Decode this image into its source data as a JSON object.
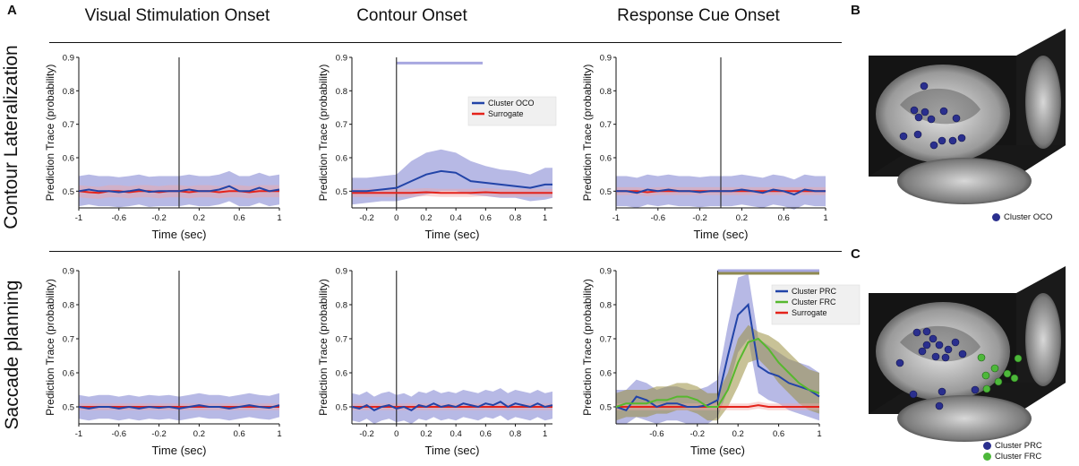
{
  "panel_labels": {
    "a": "A",
    "b": "B",
    "c": "C"
  },
  "column_titles": [
    "Visual Stimulation Onset",
    "Contour Onset",
    "Response Cue Onset"
  ],
  "row_labels": [
    "Contour Lateralization",
    "Saccade planning"
  ],
  "colors": {
    "blue": "#2244a8",
    "blue_band": "#7b7fd0",
    "red": "#e4231b",
    "red_band": "#f2a7a3",
    "green": "#56b82e",
    "green_band": "#9a8f42",
    "cluster_oco": "#2a2f8e",
    "cluster_frc": "#4db83a"
  },
  "brain_b": {
    "legend": [
      {
        "label": "Cluster OCO",
        "color": "#2a2f8e"
      }
    ]
  },
  "brain_c": {
    "legend": [
      {
        "label": "Cluster PRC",
        "color": "#2a2f8e"
      },
      {
        "label": "Cluster FRC",
        "color": "#4db83a"
      }
    ]
  },
  "chart_data": [
    {
      "type": "line",
      "id": "r1c1",
      "title": "Visual Stimulation Onset",
      "xlabel": "Time (sec)",
      "ylabel": "Prediction Trace (probability)",
      "xlim": [
        -1,
        1
      ],
      "ylim": [
        0.45,
        0.9
      ],
      "xticks": [
        -1,
        -0.6,
        -0.2,
        0.2,
        0.6,
        1
      ],
      "xtick_labels": [
        "-1",
        "-0.6",
        "-0.2",
        "0.2",
        "0.6",
        "1"
      ],
      "yticks": [
        0.5,
        0.6,
        0.7,
        0.8,
        0.9
      ],
      "ytick_labels": [
        "0.5",
        "0.6",
        "0.7",
        "0.8",
        "0.9"
      ],
      "vline": 0,
      "x": [
        -1,
        -0.9,
        -0.8,
        -0.7,
        -0.6,
        -0.5,
        -0.4,
        -0.3,
        -0.2,
        -0.1,
        0,
        0.1,
        0.2,
        0.3,
        0.4,
        0.5,
        0.6,
        0.7,
        0.8,
        0.9,
        1
      ],
      "series": [
        {
          "name": "Cluster",
          "color": "#2244a8",
          "band_color": "#7b7fd0",
          "values": [
            0.5,
            0.505,
            0.5,
            0.5,
            0.497,
            0.5,
            0.505,
            0.498,
            0.5,
            0.5,
            0.5,
            0.505,
            0.5,
            0.5,
            0.505,
            0.515,
            0.5,
            0.5,
            0.51,
            0.5,
            0.505
          ],
          "band": 0.045
        },
        {
          "name": "Surrogate",
          "color": "#e4231b",
          "band_color": "#f2a7a3",
          "values": [
            0.5,
            0.497,
            0.495,
            0.5,
            0.5,
            0.497,
            0.5,
            0.5,
            0.497,
            0.5,
            0.5,
            0.497,
            0.5,
            0.5,
            0.497,
            0.5,
            0.5,
            0.497,
            0.5,
            0.5,
            0.5
          ],
          "band": 0.018
        }
      ]
    },
    {
      "type": "line",
      "id": "r1c2",
      "title": "Contour Onset",
      "xlabel": "Time (sec)",
      "ylabel": "Prediction Trace (probability)",
      "xlim": [
        -0.3,
        1.05
      ],
      "ylim": [
        0.45,
        0.9
      ],
      "xticks": [
        -0.2,
        0,
        0.2,
        0.4,
        0.6,
        0.8,
        1
      ],
      "xtick_labels": [
        "-0.2",
        "0",
        "0.2",
        "0.4",
        "0.6",
        "0.8",
        "1"
      ],
      "yticks": [
        0.5,
        0.6,
        0.7,
        0.8,
        0.9
      ],
      "ytick_labels": [
        "0.5",
        "0.6",
        "0.7",
        "0.8",
        "0.9"
      ],
      "vline": 0,
      "sig_bars": [
        {
          "x0": 0.0,
          "x1": 0.58,
          "y": 0.883,
          "color": "#a8a8e0"
        }
      ],
      "legend": [
        {
          "label": "Cluster OCO",
          "color": "#2244a8"
        },
        {
          "label": "Surrogate",
          "color": "#e4231b"
        }
      ],
      "x": [
        -0.3,
        -0.2,
        -0.1,
        0,
        0.1,
        0.2,
        0.3,
        0.4,
        0.5,
        0.6,
        0.7,
        0.8,
        0.9,
        1.0,
        1.05
      ],
      "series": [
        {
          "name": "Cluster OCO",
          "color": "#2244a8",
          "band_color": "#7b7fd0",
          "values": [
            0.5,
            0.5,
            0.505,
            0.51,
            0.53,
            0.55,
            0.56,
            0.555,
            0.53,
            0.525,
            0.52,
            0.515,
            0.51,
            0.52,
            0.52
          ],
          "band_low": [
            0.46,
            0.465,
            0.47,
            0.47,
            0.48,
            0.49,
            0.5,
            0.5,
            0.49,
            0.485,
            0.48,
            0.48,
            0.47,
            0.475,
            0.48
          ],
          "band_high": [
            0.54,
            0.54,
            0.545,
            0.55,
            0.59,
            0.615,
            0.625,
            0.615,
            0.59,
            0.575,
            0.565,
            0.56,
            0.55,
            0.57,
            0.57
          ]
        },
        {
          "name": "Surrogate",
          "color": "#e4231b",
          "band_color": "#f2a7a3",
          "values": [
            0.495,
            0.495,
            0.495,
            0.495,
            0.495,
            0.497,
            0.495,
            0.495,
            0.495,
            0.497,
            0.495,
            0.495,
            0.495,
            0.495,
            0.495
          ],
          "band": 0.012
        }
      ]
    },
    {
      "type": "line",
      "id": "r1c3",
      "title": "Response Cue Onset",
      "xlabel": "Time (sec)",
      "ylabel": "Prediction Trace (probability)",
      "xlim": [
        -1,
        1
      ],
      "ylim": [
        0.45,
        0.9
      ],
      "xticks": [
        -1,
        -0.6,
        -0.2,
        0.2,
        0.6,
        1
      ],
      "xtick_labels": [
        "-1",
        "-0.6",
        "-0.2",
        "0.2",
        "0.6",
        "1"
      ],
      "yticks": [
        0.5,
        0.6,
        0.7,
        0.8,
        0.9
      ],
      "ytick_labels": [
        "0.5",
        "0.6",
        "0.7",
        "0.8",
        "0.9"
      ],
      "vline": 0,
      "x": [
        -1,
        -0.9,
        -0.8,
        -0.7,
        -0.6,
        -0.5,
        -0.4,
        -0.3,
        -0.2,
        -0.1,
        0,
        0.1,
        0.2,
        0.3,
        0.4,
        0.5,
        0.6,
        0.7,
        0.8,
        0.9,
        1
      ],
      "series": [
        {
          "name": "Cluster",
          "color": "#2244a8",
          "band_color": "#7b7fd0",
          "values": [
            0.5,
            0.5,
            0.495,
            0.505,
            0.5,
            0.505,
            0.5,
            0.5,
            0.497,
            0.5,
            0.5,
            0.5,
            0.505,
            0.5,
            0.495,
            0.505,
            0.5,
            0.49,
            0.505,
            0.5,
            0.5
          ],
          "band": 0.045
        },
        {
          "name": "Surrogate",
          "color": "#e4231b",
          "band_color": "#f2a7a3",
          "values": [
            0.5,
            0.5,
            0.5,
            0.497,
            0.5,
            0.5,
            0.5,
            0.5,
            0.5,
            0.5,
            0.5,
            0.5,
            0.5,
            0.5,
            0.5,
            0.5,
            0.5,
            0.5,
            0.5,
            0.5,
            0.5
          ],
          "band": 0.012
        }
      ]
    },
    {
      "type": "line",
      "id": "r2c1",
      "title": "",
      "xlabel": "Time (sec)",
      "ylabel": "Prediction Trace (probability)",
      "xlim": [
        -1,
        1
      ],
      "ylim": [
        0.45,
        0.9
      ],
      "xticks": [
        -1,
        -0.6,
        -0.2,
        0.2,
        0.6,
        1
      ],
      "xtick_labels": [
        "-1",
        "-0.6",
        "-0.2",
        "0.2",
        "0.6",
        "1"
      ],
      "yticks": [
        0.5,
        0.6,
        0.7,
        0.8,
        0.9
      ],
      "ytick_labels": [
        "0.5",
        "0.6",
        "0.7",
        "0.8",
        "0.9"
      ],
      "vline": 0,
      "x": [
        -1,
        -0.9,
        -0.8,
        -0.7,
        -0.6,
        -0.5,
        -0.4,
        -0.3,
        -0.2,
        -0.1,
        0,
        0.1,
        0.2,
        0.3,
        0.4,
        0.5,
        0.6,
        0.7,
        0.8,
        0.9,
        1
      ],
      "series": [
        {
          "name": "Cluster",
          "color": "#2244a8",
          "band_color": "#7b7fd0",
          "values": [
            0.5,
            0.495,
            0.5,
            0.5,
            0.495,
            0.5,
            0.495,
            0.5,
            0.497,
            0.5,
            0.495,
            0.5,
            0.505,
            0.5,
            0.5,
            0.495,
            0.5,
            0.505,
            0.5,
            0.497,
            0.505
          ],
          "band": 0.035
        },
        {
          "name": "Surrogate",
          "color": "#e4231b",
          "band_color": "#f2a7a3",
          "values": [
            0.5,
            0.5,
            0.5,
            0.5,
            0.5,
            0.5,
            0.5,
            0.5,
            0.5,
            0.5,
            0.5,
            0.5,
            0.5,
            0.5,
            0.5,
            0.5,
            0.5,
            0.5,
            0.5,
            0.5,
            0.5
          ],
          "band": 0.01
        }
      ]
    },
    {
      "type": "line",
      "id": "r2c2",
      "title": "",
      "xlabel": "Time (sec)",
      "ylabel": "Prediction Trace (probability)",
      "xlim": [
        -0.3,
        1.05
      ],
      "ylim": [
        0.45,
        0.9
      ],
      "xticks": [
        -0.2,
        0,
        0.2,
        0.4,
        0.6,
        0.8,
        1
      ],
      "xtick_labels": [
        "-0.2",
        "0",
        "0.2",
        "0.4",
        "0.6",
        "0.8",
        "1"
      ],
      "yticks": [
        0.5,
        0.6,
        0.7,
        0.8,
        0.9
      ],
      "ytick_labels": [
        "0.5",
        "0.6",
        "0.7",
        "0.8",
        "0.9"
      ],
      "vline": 0,
      "x": [
        -0.3,
        -0.25,
        -0.2,
        -0.15,
        -0.1,
        -0.05,
        0,
        0.05,
        0.1,
        0.15,
        0.2,
        0.25,
        0.3,
        0.35,
        0.4,
        0.45,
        0.5,
        0.55,
        0.6,
        0.65,
        0.7,
        0.75,
        0.8,
        0.85,
        0.9,
        0.95,
        1.0,
        1.05
      ],
      "series": [
        {
          "name": "Cluster",
          "color": "#2244a8",
          "band_color": "#7b7fd0",
          "values": [
            0.5,
            0.495,
            0.505,
            0.49,
            0.5,
            0.505,
            0.495,
            0.5,
            0.49,
            0.505,
            0.5,
            0.51,
            0.5,
            0.505,
            0.5,
            0.51,
            0.505,
            0.5,
            0.51,
            0.505,
            0.515,
            0.5,
            0.51,
            0.505,
            0.5,
            0.51,
            0.5,
            0.505
          ],
          "band": 0.04
        },
        {
          "name": "Surrogate",
          "color": "#e4231b",
          "band_color": "#f2a7a3",
          "values": [
            0.5,
            0.5,
            0.5,
            0.5,
            0.5,
            0.5,
            0.5,
            0.5,
            0.5,
            0.5,
            0.5,
            0.5,
            0.5,
            0.5,
            0.5,
            0.5,
            0.5,
            0.5,
            0.5,
            0.5,
            0.5,
            0.5,
            0.5,
            0.5,
            0.5,
            0.5,
            0.5,
            0.5
          ],
          "band": 0.01
        }
      ]
    },
    {
      "type": "line",
      "id": "r2c3",
      "title": "",
      "xlabel": "Time (sec)",
      "ylabel": "Prediction Trace (probability)",
      "xlim": [
        -1,
        1
      ],
      "ylim": [
        0.45,
        0.9
      ],
      "xticks": [
        -0.6,
        -0.2,
        0.2,
        0.6,
        1
      ],
      "xtick_labels": [
        "-0.6",
        "-0.2",
        "0.2",
        "0.6",
        "1"
      ],
      "yticks": [
        0.5,
        0.6,
        0.7,
        0.8,
        0.9
      ],
      "ytick_labels": [
        "0.5",
        "0.6",
        "0.7",
        "0.8",
        "0.9"
      ],
      "vline": 0,
      "sig_bars": [
        {
          "x0": 0.0,
          "x1": 1.0,
          "y": 0.9,
          "color": "#a8a8e0"
        },
        {
          "x0": 0.0,
          "x1": 1.0,
          "y": 0.892,
          "color": "#8f8a50"
        }
      ],
      "legend": [
        {
          "label": "Cluster PRC",
          "color": "#2244a8"
        },
        {
          "label": "Cluster FRC",
          "color": "#56b82e"
        },
        {
          "label": "Surrogate",
          "color": "#e4231b"
        }
      ],
      "x": [
        -1,
        -0.9,
        -0.8,
        -0.7,
        -0.6,
        -0.5,
        -0.4,
        -0.3,
        -0.2,
        -0.1,
        0,
        0.1,
        0.2,
        0.3,
        0.4,
        0.5,
        0.6,
        0.7,
        0.8,
        0.9,
        1
      ],
      "series": [
        {
          "name": "Cluster PRC",
          "color": "#2244a8",
          "band_color": "#7b7fd0",
          "values": [
            0.5,
            0.49,
            0.53,
            0.52,
            0.5,
            0.51,
            0.51,
            0.5,
            0.5,
            0.505,
            0.52,
            0.65,
            0.77,
            0.8,
            0.62,
            0.6,
            0.59,
            0.57,
            0.56,
            0.55,
            0.53
          ],
          "band_low": [
            0.45,
            0.45,
            0.47,
            0.46,
            0.45,
            0.46,
            0.46,
            0.45,
            0.45,
            0.45,
            0.47,
            0.55,
            0.66,
            0.7,
            0.54,
            0.52,
            0.51,
            0.49,
            0.48,
            0.47,
            0.46
          ],
          "band_high": [
            0.55,
            0.55,
            0.58,
            0.57,
            0.55,
            0.56,
            0.56,
            0.55,
            0.55,
            0.56,
            0.58,
            0.74,
            0.88,
            0.89,
            0.7,
            0.68,
            0.66,
            0.64,
            0.63,
            0.62,
            0.6
          ]
        },
        {
          "name": "Cluster FRC",
          "color": "#56b82e",
          "band_color": "#9a8f42",
          "values": [
            0.5,
            0.51,
            0.51,
            0.51,
            0.52,
            0.52,
            0.53,
            0.53,
            0.52,
            0.5,
            0.5,
            0.55,
            0.63,
            0.69,
            0.7,
            0.67,
            0.63,
            0.6,
            0.57,
            0.55,
            0.54
          ],
          "band_low": [
            0.46,
            0.47,
            0.47,
            0.47,
            0.48,
            0.48,
            0.49,
            0.49,
            0.48,
            0.46,
            0.46,
            0.5,
            0.56,
            0.63,
            0.64,
            0.61,
            0.57,
            0.54,
            0.51,
            0.49,
            0.48
          ],
          "band_high": [
            0.54,
            0.55,
            0.55,
            0.55,
            0.56,
            0.56,
            0.57,
            0.57,
            0.56,
            0.54,
            0.54,
            0.6,
            0.7,
            0.74,
            0.72,
            0.71,
            0.69,
            0.66,
            0.63,
            0.61,
            0.6
          ]
        },
        {
          "name": "Surrogate",
          "color": "#e4231b",
          "band_color": "#f2a7a3",
          "values": [
            0.5,
            0.5,
            0.5,
            0.5,
            0.5,
            0.5,
            0.5,
            0.5,
            0.5,
            0.5,
            0.5,
            0.5,
            0.5,
            0.5,
            0.505,
            0.5,
            0.5,
            0.5,
            0.5,
            0.5,
            0.5
          ],
          "band": 0.01
        }
      ]
    }
  ]
}
